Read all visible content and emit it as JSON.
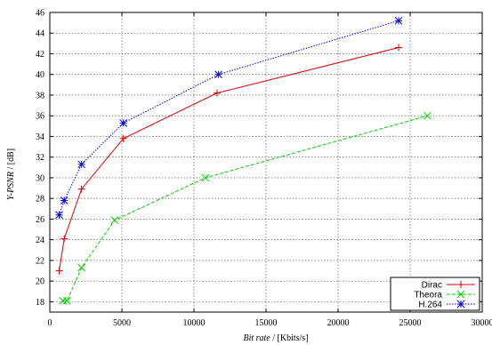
{
  "chart_data": {
    "type": "line",
    "xlabel_italic": "Bit rate",
    "xlabel_unit": " / [Kbits/s]",
    "ylabel_italic": "Y-PSNR",
    "ylabel_unit": " / [dB]",
    "xlim": [
      0,
      30000
    ],
    "ylim": [
      17,
      46
    ],
    "xticks": [
      0,
      5000,
      10000,
      15000,
      20000,
      25000,
      30000
    ],
    "yticks": [
      18,
      20,
      22,
      24,
      26,
      28,
      30,
      32,
      34,
      36,
      38,
      40,
      42,
      44,
      46
    ],
    "grid": true,
    "legend_position": "bottom-right",
    "series": [
      {
        "name": "Dirac",
        "color": "#e00000",
        "dash": "solid",
        "marker": "plus",
        "points": [
          [
            650,
            21.0
          ],
          [
            1000,
            24.1
          ],
          [
            2200,
            28.9
          ],
          [
            5100,
            33.8
          ],
          [
            11600,
            38.2
          ],
          [
            24200,
            42.6
          ]
        ]
      },
      {
        "name": "Theora",
        "color": "#00d000",
        "dash": "dashed",
        "marker": "cross",
        "points": [
          [
            900,
            18.1
          ],
          [
            1200,
            18.1
          ],
          [
            2200,
            21.3
          ],
          [
            4500,
            25.9
          ],
          [
            10800,
            30.0
          ],
          [
            26200,
            36.0
          ]
        ]
      },
      {
        "name": "H.264",
        "color": "#0000e0",
        "dash": "dotted",
        "marker": "star",
        "points": [
          [
            650,
            26.4
          ],
          [
            1000,
            27.8
          ],
          [
            2200,
            31.3
          ],
          [
            5100,
            35.3
          ],
          [
            11700,
            40.0
          ],
          [
            24200,
            45.2
          ]
        ]
      }
    ]
  }
}
